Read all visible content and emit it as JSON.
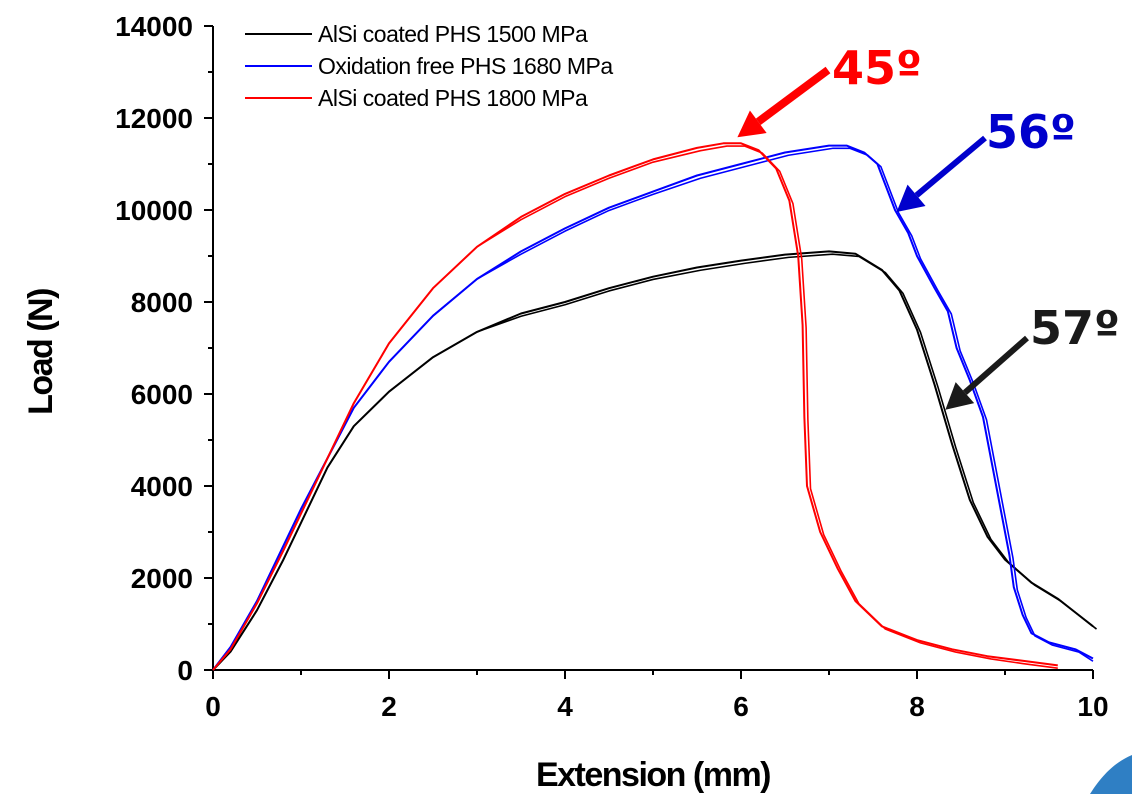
{
  "chart_data": {
    "type": "line",
    "title": "",
    "xlabel": "Extension (mm)",
    "ylabel": "Load (N)",
    "xlim": [
      0,
      10
    ],
    "ylim": [
      0,
      14000
    ],
    "xticks": [
      "0",
      "2",
      "4",
      "6",
      "8",
      "10"
    ],
    "yticks": [
      "0",
      "2000",
      "4000",
      "6000",
      "8000",
      "10000",
      "12000",
      "14000"
    ],
    "grid": false,
    "legend_position": "top-left",
    "series": [
      {
        "name": "AlSi coated PHS 1500 MPa",
        "color": "#000000",
        "points": [
          [
            0,
            0
          ],
          [
            0.2,
            400
          ],
          [
            0.5,
            1300
          ],
          [
            0.8,
            2400
          ],
          [
            1.0,
            3200
          ],
          [
            1.3,
            4400
          ],
          [
            1.6,
            5300
          ],
          [
            2.0,
            6050
          ],
          [
            2.5,
            6800
          ],
          [
            3.0,
            7350
          ],
          [
            3.5,
            7750
          ],
          [
            4.0,
            8000
          ],
          [
            4.5,
            8300
          ],
          [
            5.0,
            8550
          ],
          [
            5.5,
            8750
          ],
          [
            6.0,
            8900
          ],
          [
            6.5,
            9030
          ],
          [
            7.0,
            9100
          ],
          [
            7.3,
            9050
          ],
          [
            7.6,
            8700
          ],
          [
            7.8,
            8250
          ],
          [
            8.0,
            7400
          ],
          [
            8.2,
            6200
          ],
          [
            8.4,
            4900
          ],
          [
            8.6,
            3700
          ],
          [
            8.8,
            2900
          ],
          [
            9.0,
            2400
          ],
          [
            9.3,
            1900
          ],
          [
            9.6,
            1550
          ],
          [
            9.8,
            1250
          ],
          [
            10.0,
            950
          ]
        ]
      },
      {
        "name": "Oxidation free PHS 1680 MPa",
        "color": "#0000ff",
        "points": [
          [
            0,
            0
          ],
          [
            0.2,
            500
          ],
          [
            0.5,
            1500
          ],
          [
            0.8,
            2700
          ],
          [
            1.0,
            3500
          ],
          [
            1.3,
            4600
          ],
          [
            1.6,
            5700
          ],
          [
            2.0,
            6700
          ],
          [
            2.5,
            7700
          ],
          [
            3.0,
            8500
          ],
          [
            3.5,
            9100
          ],
          [
            4.0,
            9600
          ],
          [
            4.5,
            10050
          ],
          [
            5.0,
            10400
          ],
          [
            5.5,
            10750
          ],
          [
            6.0,
            11000
          ],
          [
            6.5,
            11250
          ],
          [
            7.0,
            11400
          ],
          [
            7.2,
            11400
          ],
          [
            7.4,
            11250
          ],
          [
            7.55,
            11000
          ],
          [
            7.65,
            10500
          ],
          [
            7.75,
            10000
          ],
          [
            7.9,
            9500
          ],
          [
            8.0,
            9000
          ],
          [
            8.2,
            8300
          ],
          [
            8.35,
            7800
          ],
          [
            8.45,
            7000
          ],
          [
            8.6,
            6300
          ],
          [
            8.75,
            5500
          ],
          [
            8.85,
            4500
          ],
          [
            8.95,
            3500
          ],
          [
            9.05,
            2500
          ],
          [
            9.1,
            1800
          ],
          [
            9.2,
            1200
          ],
          [
            9.3,
            800
          ],
          [
            9.5,
            600
          ],
          [
            9.8,
            450
          ],
          [
            10.0,
            250
          ]
        ]
      },
      {
        "name": "AlSi coated PHS 1800 MPa",
        "color": "#ff0000",
        "points": [
          [
            0,
            0
          ],
          [
            0.2,
            450
          ],
          [
            0.5,
            1450
          ],
          [
            0.8,
            2600
          ],
          [
            1.0,
            3400
          ],
          [
            1.3,
            4600
          ],
          [
            1.6,
            5800
          ],
          [
            2.0,
            7100
          ],
          [
            2.5,
            8300
          ],
          [
            3.0,
            9200
          ],
          [
            3.5,
            9850
          ],
          [
            4.0,
            10350
          ],
          [
            4.5,
            10750
          ],
          [
            5.0,
            11100
          ],
          [
            5.5,
            11350
          ],
          [
            5.8,
            11450
          ],
          [
            6.0,
            11450
          ],
          [
            6.2,
            11300
          ],
          [
            6.4,
            10900
          ],
          [
            6.55,
            10200
          ],
          [
            6.65,
            9000
          ],
          [
            6.7,
            7500
          ],
          [
            6.72,
            5500
          ],
          [
            6.75,
            4000
          ],
          [
            6.9,
            3000
          ],
          [
            7.1,
            2200
          ],
          [
            7.3,
            1500
          ],
          [
            7.6,
            950
          ],
          [
            8.0,
            650
          ],
          [
            8.4,
            450
          ],
          [
            8.8,
            300
          ],
          [
            9.2,
            200
          ],
          [
            9.6,
            100
          ]
        ]
      }
    ],
    "annotations": [
      {
        "text": "45º",
        "color": "#ff0000",
        "x": 5.8,
        "y": 11450
      },
      {
        "text": "56º",
        "color": "#0000cc",
        "x": 7.7,
        "y": 10000
      },
      {
        "text": "57º",
        "color": "#1a1a1a",
        "x": 8.3,
        "y": 5700
      }
    ]
  }
}
